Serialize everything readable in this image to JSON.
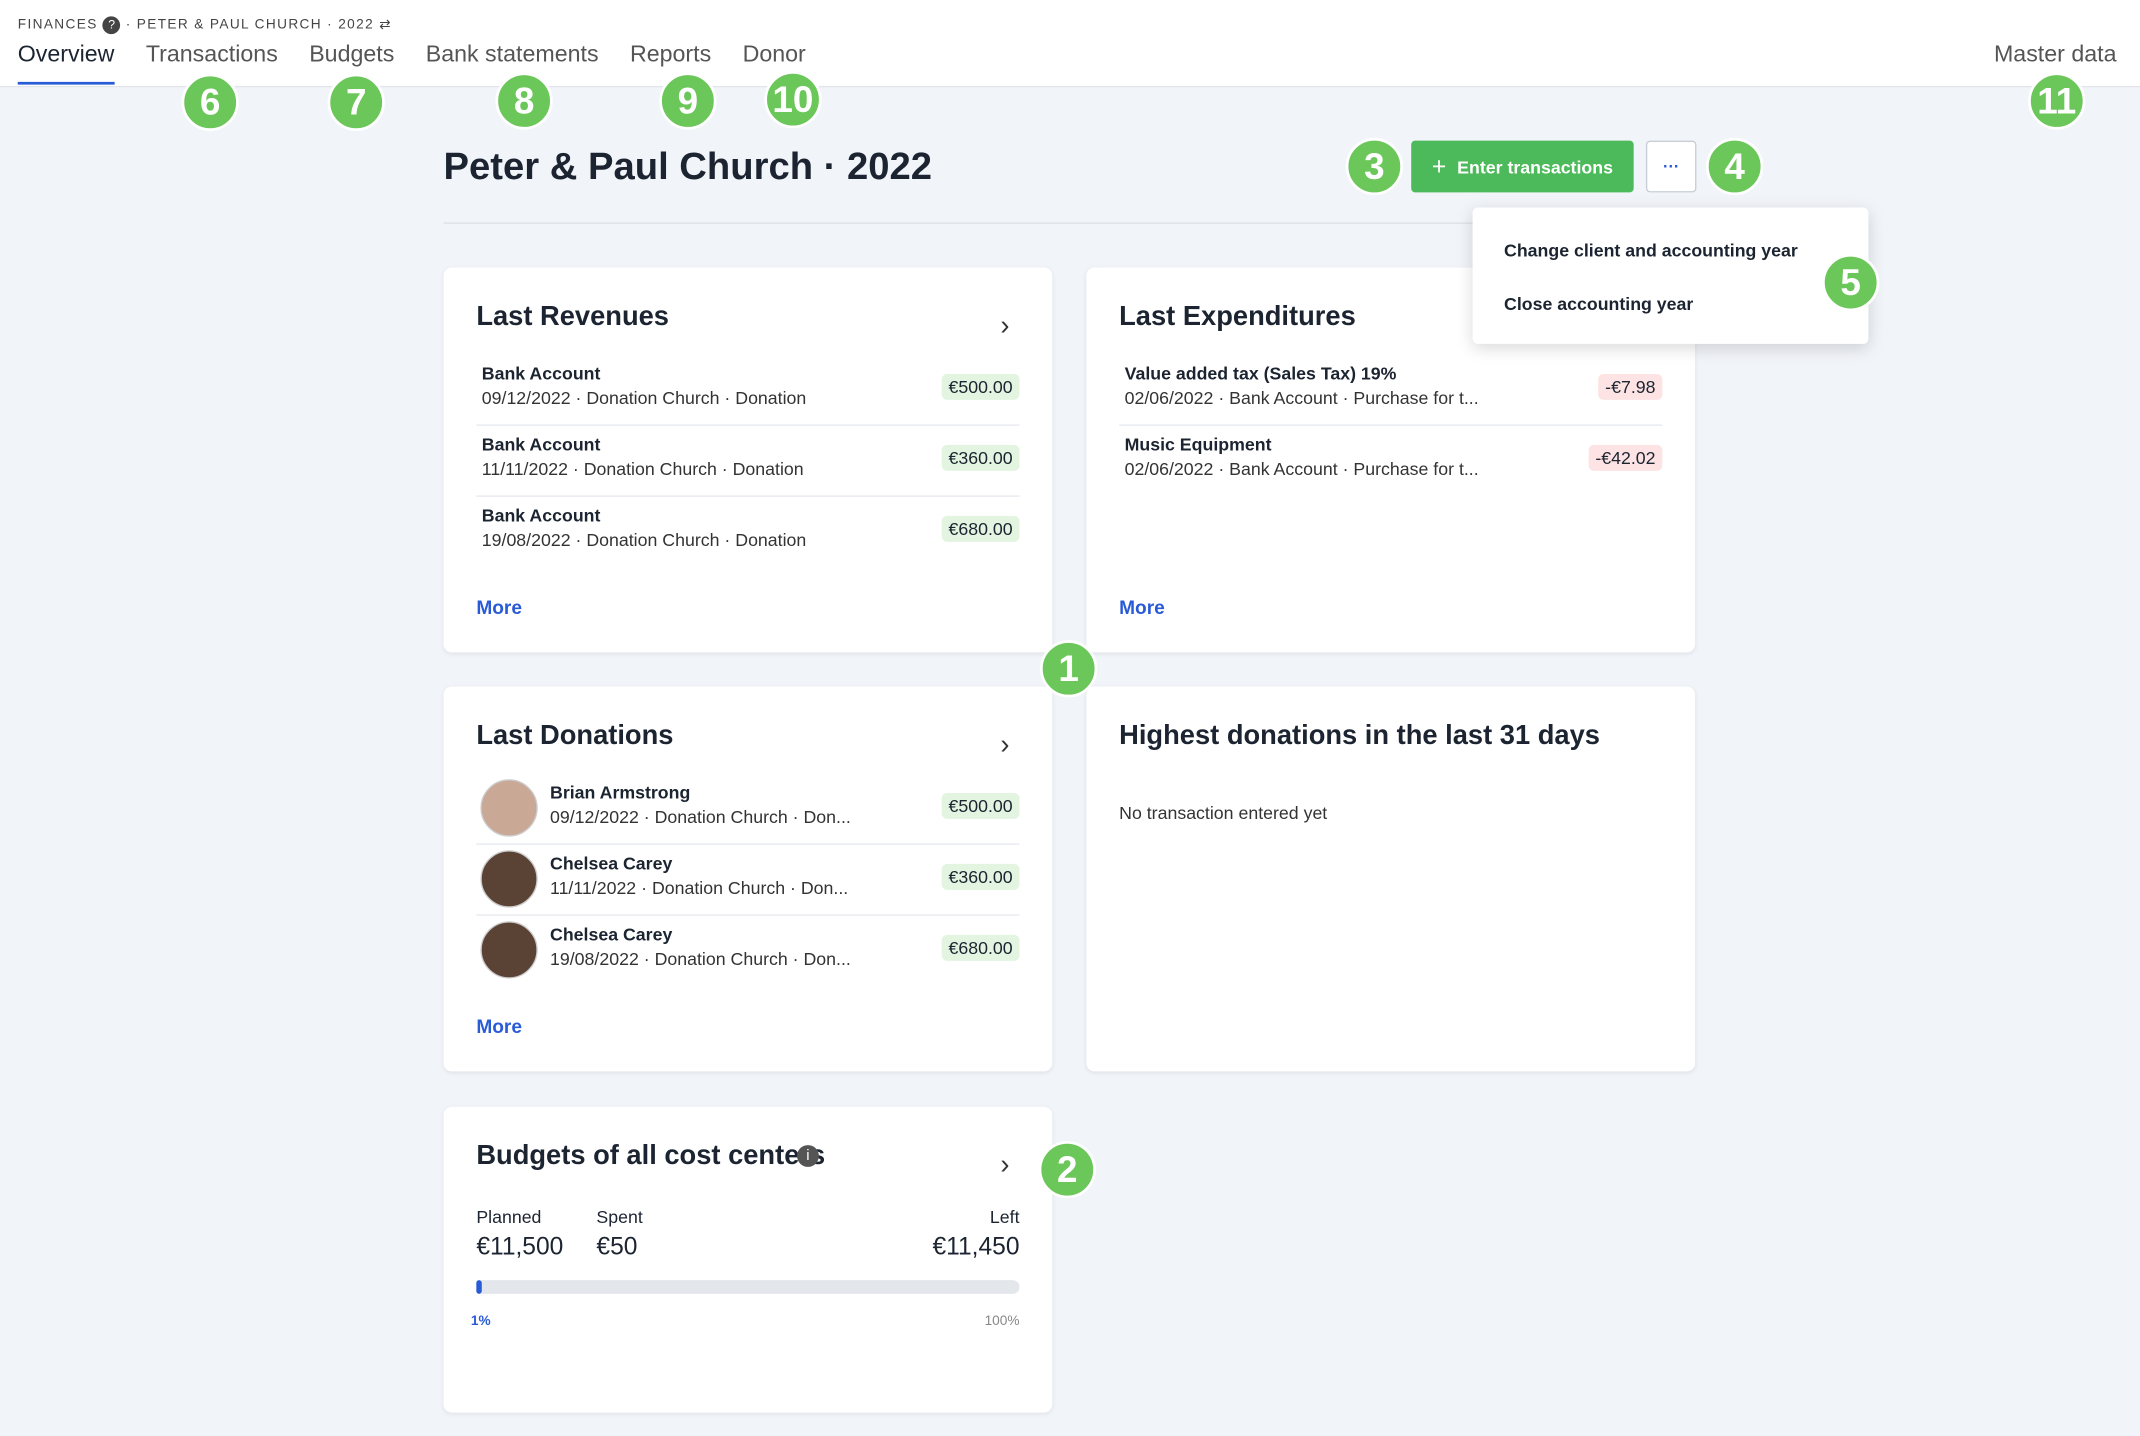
{
  "breadcrumb": {
    "section": "FINANCES",
    "client": "PETER & PAUL CHURCH · 2022"
  },
  "tabs": [
    "Overview",
    "Transactions",
    "Budgets",
    "Bank statements",
    "Reports",
    "Donor"
  ],
  "master_data": "Master data",
  "title": "Peter & Paul Church · 2022",
  "enter_button": "Enter transactions",
  "more_button": "···",
  "menu": [
    "Change client and accounting year",
    "Close accounting year"
  ],
  "annotations": [
    "1",
    "2",
    "3",
    "4",
    "5",
    "6",
    "7",
    "8",
    "9",
    "10",
    "11"
  ],
  "revenues": {
    "title": "Last Revenues",
    "more": "More",
    "items": [
      {
        "name": "Bank Account",
        "details": "09/12/2022 · Donation Church · Donation",
        "amount": "€500.00"
      },
      {
        "name": "Bank Account",
        "details": "11/11/2022 · Donation Church · Donation",
        "amount": "€360.00"
      },
      {
        "name": "Bank Account",
        "details": "19/08/2022 · Donation Church · Donation",
        "amount": "€680.00"
      }
    ]
  },
  "expenditures": {
    "title": "Last Expenditures",
    "more": "More",
    "items": [
      {
        "name": "Value added tax (Sales Tax) 19%",
        "details": "02/06/2022 · Bank Account · Purchase for t...",
        "amount": "-€7.98"
      },
      {
        "name": "Music Equipment",
        "details": "02/06/2022 · Bank Account · Purchase for t...",
        "amount": "-€42.02"
      }
    ]
  },
  "donations": {
    "title": "Last Donations",
    "more": "More",
    "items": [
      {
        "name": "Brian Armstrong",
        "details": "09/12/2022 · Donation Church · Don...",
        "amount": "€500.00"
      },
      {
        "name": "Chelsea Carey",
        "details": "11/11/2022 · Donation Church · Don...",
        "amount": "€360.00"
      },
      {
        "name": "Chelsea Carey",
        "details": "19/08/2022 · Donation Church · Don...",
        "amount": "€680.00"
      }
    ]
  },
  "highest": {
    "title": "Highest donations in the last 31 days",
    "empty": "No transaction entered yet"
  },
  "budgets": {
    "title": "Budgets of all cost centers",
    "planned_label": "Planned",
    "planned": "€11,500",
    "spent_label": "Spent",
    "spent": "€50",
    "left_label": "Left",
    "left": "€11,450",
    "progress_label": "1%",
    "max_label": "100%"
  }
}
